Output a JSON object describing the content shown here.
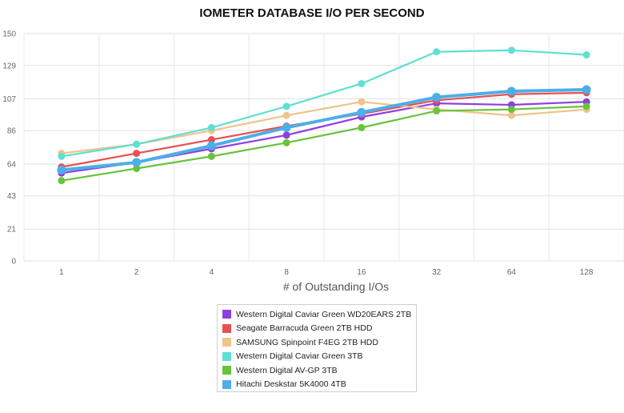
{
  "chart_data": {
    "type": "line",
    "title": "IOMETER DATABASE I/O PER SECOND",
    "xlabel": "# of Outstanding I/Os",
    "ylabel": "",
    "categories": [
      "1",
      "2",
      "4",
      "8",
      "16",
      "32",
      "64",
      "128"
    ],
    "ylim": [
      0,
      150
    ],
    "yticks": [
      0,
      21,
      43,
      64,
      86,
      107,
      129,
      150
    ],
    "grid": true,
    "legend_position": "bottom",
    "series": [
      {
        "name": "Western Digital Caviar Green WD20EARS 2TB",
        "color": "#8e3fe0",
        "values": [
          58,
          65,
          74,
          83,
          95,
          104,
          103,
          105
        ]
      },
      {
        "name": "Seagate Barracuda Green 2TB HDD",
        "color": "#e8504f",
        "values": [
          62,
          71,
          80,
          89,
          97,
          106,
          110,
          111
        ]
      },
      {
        "name": "SAMSUNG Spinpoint F4EG 2TB HDD",
        "color": "#f0c38a",
        "values": [
          71,
          77,
          86,
          96,
          105,
          100,
          96,
          100
        ]
      },
      {
        "name": "Western Digital Caviar Green 3TB",
        "color": "#5ee0d2",
        "values": [
          69,
          77,
          88,
          102,
          117,
          138,
          139,
          136
        ]
      },
      {
        "name": "Western Digital AV-GP 3TB",
        "color": "#69c33b",
        "values": [
          53,
          61,
          69,
          78,
          88,
          99,
          100,
          102
        ]
      },
      {
        "name": "Hitachi Deskstar 5K4000 4TB",
        "color": "#4daee8",
        "values": [
          60,
          65,
          76,
          88,
          98,
          108,
          112,
          113
        ]
      }
    ]
  }
}
